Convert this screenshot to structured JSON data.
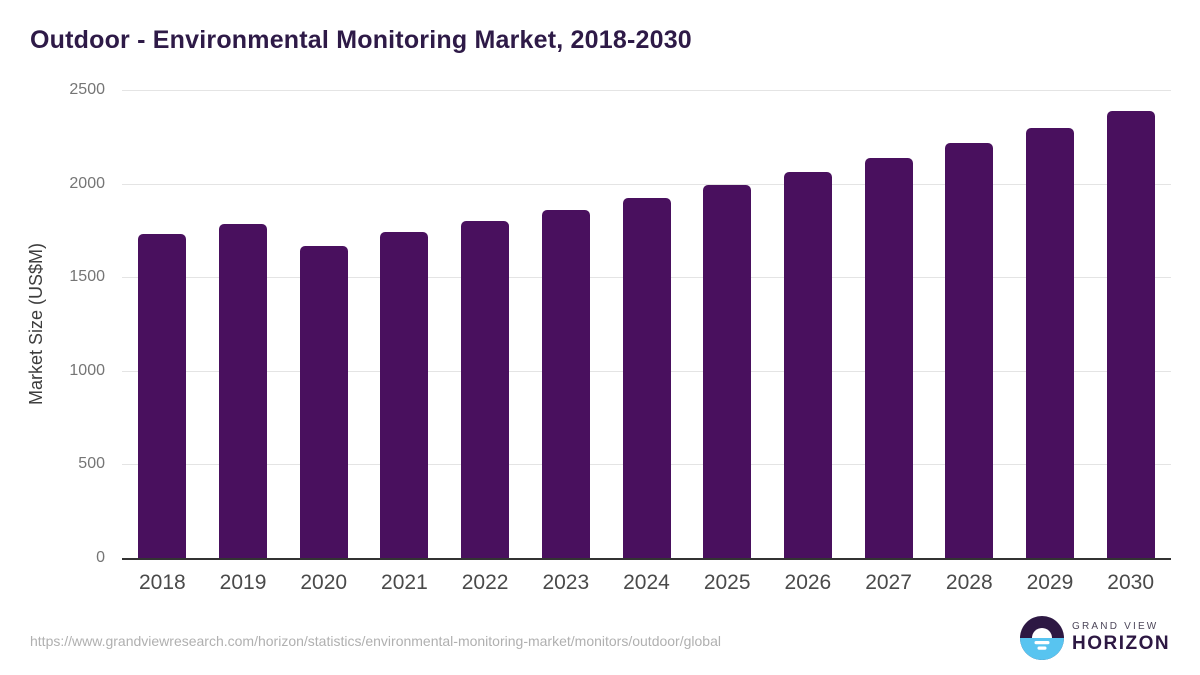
{
  "chart_data": {
    "type": "bar",
    "title": "Outdoor - Environmental Monitoring Market, 2018-2030",
    "ylabel": "Market Size (US$M)",
    "xlabel": "",
    "categories": [
      "2018",
      "2019",
      "2020",
      "2021",
      "2022",
      "2023",
      "2024",
      "2025",
      "2026",
      "2027",
      "2028",
      "2029",
      "2030"
    ],
    "values": [
      1730,
      1785,
      1665,
      1740,
      1800,
      1858,
      1925,
      1990,
      2060,
      2135,
      2218,
      2295,
      2388
    ],
    "ylim": [
      0,
      2500
    ],
    "yticks": [
      0,
      500,
      1000,
      1500,
      2000,
      2500
    ],
    "grid": "horizontal",
    "legend": "none",
    "bar_color": "#49105e"
  },
  "footer": {
    "source_url": "https://www.grandviewresearch.com/horizon/statistics/environmental-monitoring-market/monitors/outdoor/global",
    "logo": {
      "line1": "GRAND VIEW",
      "line2": "HORIZON"
    }
  },
  "colors": {
    "title": "#2e1a47",
    "bar": "#49105e",
    "gridline": "#e4e4e4",
    "axis_line": "#333333",
    "ytick_text": "#757575",
    "xtick_text": "#4a4a4a",
    "source_text": "#b0b0b0",
    "logo_dark": "#2d1843",
    "logo_blue": "#58c4f0"
  }
}
